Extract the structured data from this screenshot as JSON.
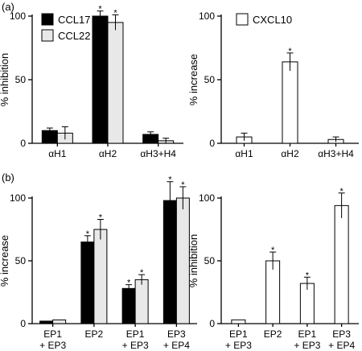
{
  "panels": {
    "top_label": "(a)",
    "bottom_label": "(b)"
  },
  "colors": {
    "dark_series": "#000000",
    "light_series": "#e8e8e8",
    "open_series": "#ffffff"
  },
  "chart_data": [
    {
      "id": "a-left",
      "type": "bar",
      "ylabel": "% inhibition",
      "ylim": [
        0,
        100
      ],
      "yticks": [
        0,
        50,
        100
      ],
      "categories": [
        "αH1",
        "αH2",
        "αH3+H4"
      ],
      "legend_position": "top-left",
      "series": [
        {
          "name": "CCL17",
          "fill": "#000000",
          "values": [
            10,
            100,
            7
          ],
          "errors": [
            2,
            4,
            2
          ],
          "sig": [
            false,
            true,
            false
          ]
        },
        {
          "name": "CCL22",
          "fill": "#e8e8e8",
          "values": [
            8,
            95,
            2
          ],
          "errors": [
            5,
            6,
            2
          ],
          "sig": [
            false,
            true,
            false
          ]
        }
      ]
    },
    {
      "id": "a-right",
      "type": "bar",
      "ylabel": "% increase",
      "ylim": [
        0,
        100
      ],
      "yticks": [
        0,
        50,
        100
      ],
      "categories": [
        "αH1",
        "αH2",
        "αH3+H4"
      ],
      "legend_position": "top-left",
      "series": [
        {
          "name": "CXCL10",
          "fill": "#ffffff",
          "values": [
            5,
            64,
            3
          ],
          "errors": [
            3,
            7,
            2
          ],
          "sig": [
            false,
            true,
            false
          ]
        }
      ]
    },
    {
      "id": "b-left",
      "type": "bar",
      "ylabel": "% increase",
      "ylim": [
        0,
        100
      ],
      "yticks": [
        0,
        50,
        100
      ],
      "categories": [
        [
          "EP1",
          "+ EP3"
        ],
        [
          "EP2"
        ],
        [
          "EP1",
          "+ EP3"
        ],
        [
          "EP3",
          "+ EP4"
        ]
      ],
      "series": [
        {
          "name": "",
          "fill": "#000000",
          "values": [
            2,
            65,
            28,
            98
          ],
          "errors": [
            0,
            5,
            3,
            15
          ],
          "sig": [
            false,
            true,
            true,
            true
          ]
        },
        {
          "name": "",
          "fill": "#e8e8e8",
          "values": [
            3,
            75,
            35,
            100
          ],
          "errors": [
            0,
            8,
            4,
            9
          ],
          "sig": [
            false,
            true,
            true,
            true
          ]
        }
      ]
    },
    {
      "id": "b-right",
      "type": "bar",
      "ylabel": "% inhibition",
      "ylim": [
        0,
        100
      ],
      "yticks": [
        0,
        50,
        100
      ],
      "categories": [
        [
          "EP1",
          "+ EP3"
        ],
        [
          "EP2"
        ],
        [
          "EP1",
          "+ EP3"
        ],
        [
          "EP3",
          "+ EP4"
        ]
      ],
      "series": [
        {
          "name": "",
          "fill": "#ffffff",
          "values": [
            3,
            50,
            32,
            94
          ],
          "errors": [
            0,
            7,
            5,
            10
          ],
          "sig": [
            false,
            true,
            true,
            true
          ]
        }
      ]
    }
  ],
  "sig_marker": "*"
}
